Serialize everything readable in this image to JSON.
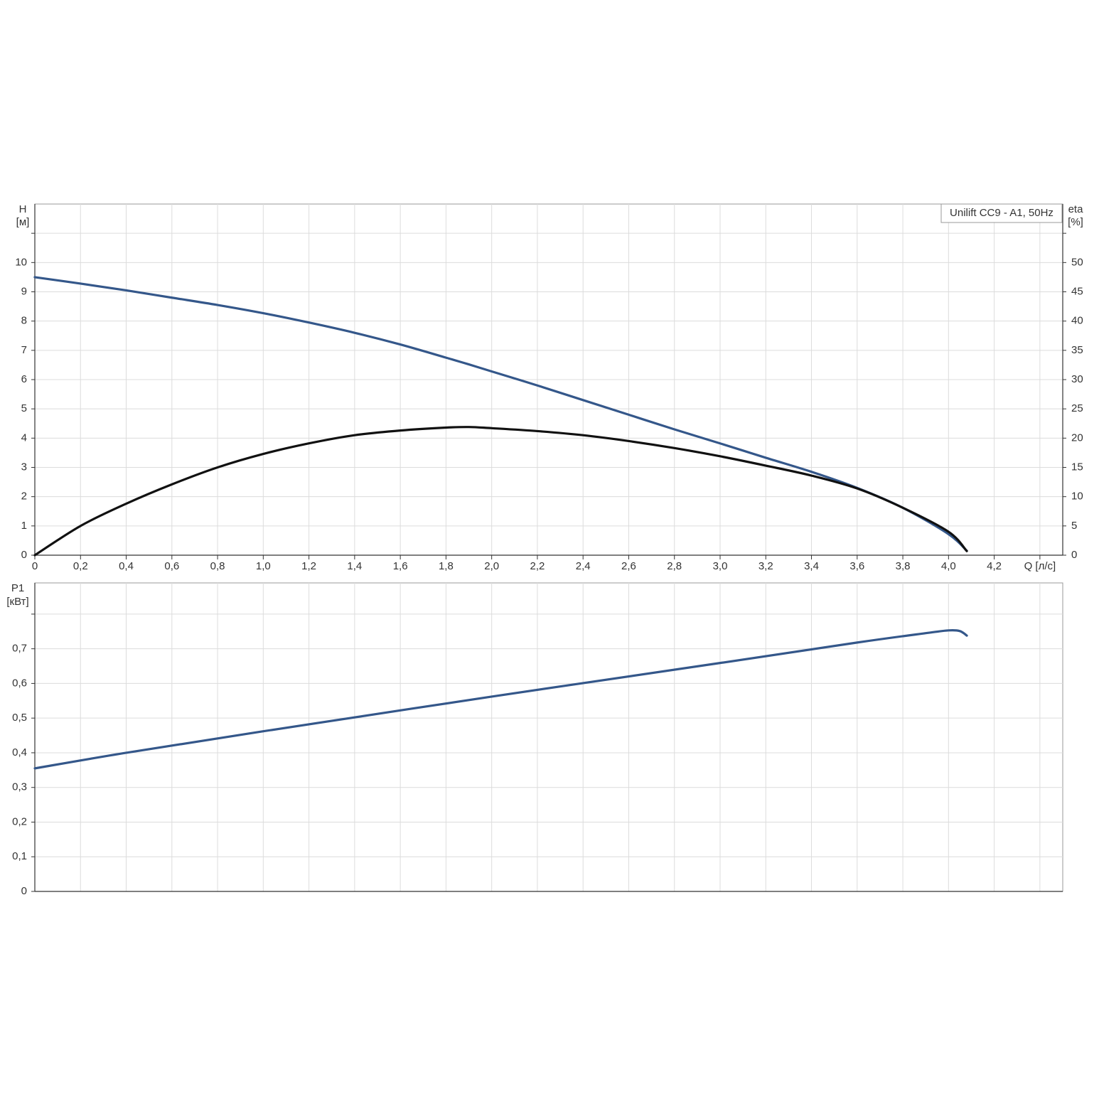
{
  "chart_data": [
    {
      "type": "line",
      "annotation": "Unilift CC9 - A1, 50Hz",
      "ylabel": "H",
      "yunit": "[м]",
      "y2label": "eta",
      "y2unit": "[%]",
      "xlabel": "Q [л/с]",
      "x": [
        0,
        0.2,
        0.4,
        0.6,
        0.8,
        1.0,
        1.2,
        1.4,
        1.6,
        1.8,
        1.9,
        2.0,
        2.2,
        2.4,
        2.6,
        2.8,
        3.0,
        3.2,
        3.4,
        3.6,
        3.8,
        4.0,
        4.08
      ],
      "series": [
        {
          "color": "#34578a",
          "values": [
            9.5,
            9.28,
            9.05,
            8.8,
            8.55,
            8.27,
            7.95,
            7.6,
            7.2,
            6.75,
            6.52,
            6.28,
            5.8,
            5.3,
            4.8,
            4.3,
            3.82,
            3.33,
            2.85,
            2.3,
            1.62,
            0.72,
            0.15
          ]
        },
        {
          "color": "#111111",
          "axis": "y2",
          "values": [
            0,
            5.0,
            8.8,
            12.1,
            15.0,
            17.3,
            19.1,
            20.5,
            21.3,
            21.8,
            21.9,
            21.7,
            21.2,
            20.5,
            19.5,
            18.3,
            16.9,
            15.3,
            13.6,
            11.4,
            8.1,
            4.0,
            0.7
          ]
        }
      ],
      "xlim": [
        0,
        4.5
      ],
      "xticks": [
        0,
        {
          "value": 0.2,
          "label": "0,2"
        },
        {
          "value": 0.4,
          "label": "0,4"
        },
        {
          "value": 0.6,
          "label": "0,6"
        },
        {
          "value": 0.8,
          "label": "0,8"
        },
        {
          "value": 1.0,
          "label": "1,0"
        },
        {
          "value": 1.2,
          "label": "1,2"
        },
        {
          "value": 1.4,
          "label": "1,4"
        },
        {
          "value": 1.6,
          "label": "1,6"
        },
        {
          "value": 1.8,
          "label": "1,8"
        },
        {
          "value": 2.0,
          "label": "2,0"
        },
        {
          "value": 2.2,
          "label": "2,2"
        },
        {
          "value": 2.4,
          "label": "2,4"
        },
        {
          "value": 2.6,
          "label": "2,6"
        },
        {
          "value": 2.8,
          "label": "2,8"
        },
        {
          "value": 3.0,
          "label": "3,0"
        },
        {
          "value": 3.2,
          "label": "3,2"
        },
        {
          "value": 3.4,
          "label": "3,4"
        },
        {
          "value": 3.6,
          "label": "3,6"
        },
        {
          "value": 3.8,
          "label": "3,8"
        },
        {
          "value": 4.0,
          "label": "4,0"
        },
        {
          "value": 4.2,
          "label": "4,2"
        },
        {
          "value": 4.4,
          "label": null
        }
      ],
      "ylim": [
        0,
        12
      ],
      "yticks": [
        0,
        1,
        2,
        3,
        4,
        5,
        6,
        7,
        8,
        9,
        10,
        {
          "value": 11,
          "label": null
        }
      ],
      "y2lim": [
        0,
        60
      ],
      "y2ticks": [
        0,
        5,
        10,
        15,
        20,
        25,
        30,
        35,
        40,
        45,
        50,
        {
          "value": 55,
          "label": null
        }
      ],
      "grid": true
    },
    {
      "type": "line",
      "ylabel": "P1",
      "yunit": "[кВт]",
      "sharex": true,
      "x": [
        0,
        0.4,
        1.0,
        2.0,
        3.0,
        3.6,
        3.9,
        4.0,
        4.05,
        4.08
      ],
      "series": [
        {
          "color": "#34578a",
          "values": [
            0.355,
            0.4,
            0.462,
            0.562,
            0.659,
            0.718,
            0.745,
            0.753,
            0.751,
            0.738
          ]
        }
      ],
      "xlim": [
        0,
        4.5
      ],
      "ylim": [
        0,
        0.89
      ],
      "yticks": [
        0,
        {
          "value": 0.1,
          "label": "0,1"
        },
        {
          "value": 0.2,
          "label": "0,2"
        },
        {
          "value": 0.3,
          "label": "0,3"
        },
        {
          "value": 0.4,
          "label": "0,4"
        },
        {
          "value": 0.5,
          "label": "0,5"
        },
        {
          "value": 0.6,
          "label": "0,6"
        },
        {
          "value": 0.7,
          "label": "0,7"
        },
        {
          "value": 0.8,
          "label": null
        }
      ],
      "grid": true
    }
  ]
}
